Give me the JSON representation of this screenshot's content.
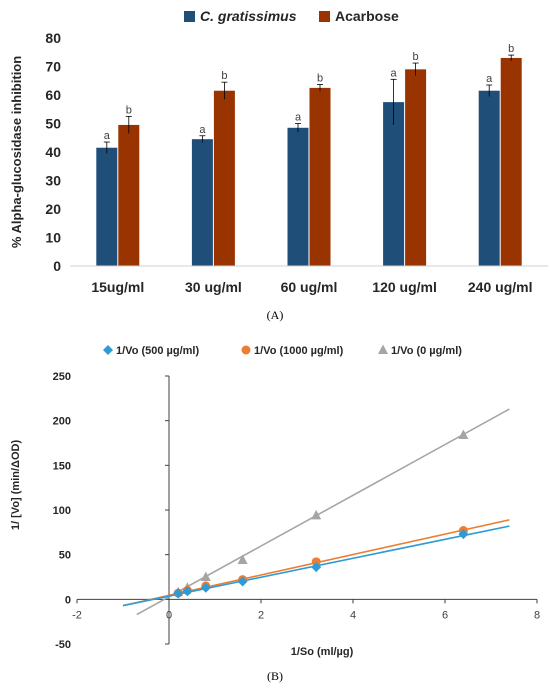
{
  "chart_data": [
    {
      "type": "bar",
      "panel_label": "(A)",
      "categories": [
        "15ug/ml",
        "30 ug/ml",
        "60 ug/ml",
        "120 ug/ml",
        "240 ug/ml"
      ],
      "ylabel": "% Alpha-glucosidase inhibition",
      "ylim": [
        0,
        80
      ],
      "yticks": [
        0,
        10,
        20,
        30,
        40,
        50,
        60,
        70,
        80
      ],
      "legend_position": "top",
      "series": [
        {
          "name": "C. gratissimus",
          "color": "#1F4E79",
          "values": [
            41.5,
            44.5,
            48.5,
            57.5,
            61.5
          ],
          "errors": [
            2,
            1.2,
            1.5,
            8,
            2
          ],
          "labels": [
            "a",
            "a",
            "a",
            "a",
            "a"
          ]
        },
        {
          "name": "Acarbose",
          "color": "#993300",
          "values": [
            49.5,
            61.5,
            62.5,
            69,
            73
          ],
          "errors": [
            3,
            3,
            1.2,
            2.2,
            1
          ],
          "labels": [
            "b",
            "b",
            "b",
            "b",
            "b"
          ]
        }
      ]
    },
    {
      "type": "scatter",
      "panel_label": "(B)",
      "xlabel": "1/So (ml/µg)",
      "ylabel": "1/ [Vo] (min/ΔOD)",
      "xlim": [
        -2,
        8
      ],
      "ylim": [
        -50,
        250
      ],
      "xticks": [
        -2,
        0,
        2,
        4,
        6,
        8
      ],
      "yticks": [
        -50,
        0,
        50,
        100,
        150,
        200,
        250
      ],
      "legend_position": "top",
      "series": [
        {
          "name": "1/Vo (500 µg/ml)",
          "color": "#2E9BD6",
          "marker": "diamond",
          "points": [
            [
              0.2,
              6.5
            ],
            [
              0.4,
              9
            ],
            [
              0.8,
              13
            ],
            [
              1.6,
              20
            ],
            [
              3.2,
              36
            ],
            [
              6.4,
              73
            ]
          ],
          "trendline": [
            [
              -1.0,
              -7
            ],
            [
              7.4,
              82
            ]
          ]
        },
        {
          "name": "1/Vo (1000 µg/ml)",
          "color": "#ED7D31",
          "marker": "circle",
          "points": [
            [
              0.2,
              7
            ],
            [
              0.4,
              10
            ],
            [
              0.8,
              15
            ],
            [
              1.6,
              22
            ],
            [
              3.2,
              42
            ],
            [
              6.4,
              77
            ]
          ],
          "trendline": [
            [
              -1.0,
              -7
            ],
            [
              7.4,
              89
            ]
          ]
        },
        {
          "name": "1/Vo (0 µg/ml)",
          "color": "#A5A5A5",
          "marker": "triangle",
          "points": [
            [
              0.2,
              8
            ],
            [
              0.4,
              13
            ],
            [
              0.8,
              25
            ],
            [
              1.6,
              44
            ],
            [
              3.2,
              94
            ],
            [
              6.4,
              184
            ]
          ],
          "trendline": [
            [
              -0.7,
              -17
            ],
            [
              7.4,
              213
            ]
          ]
        }
      ]
    }
  ]
}
